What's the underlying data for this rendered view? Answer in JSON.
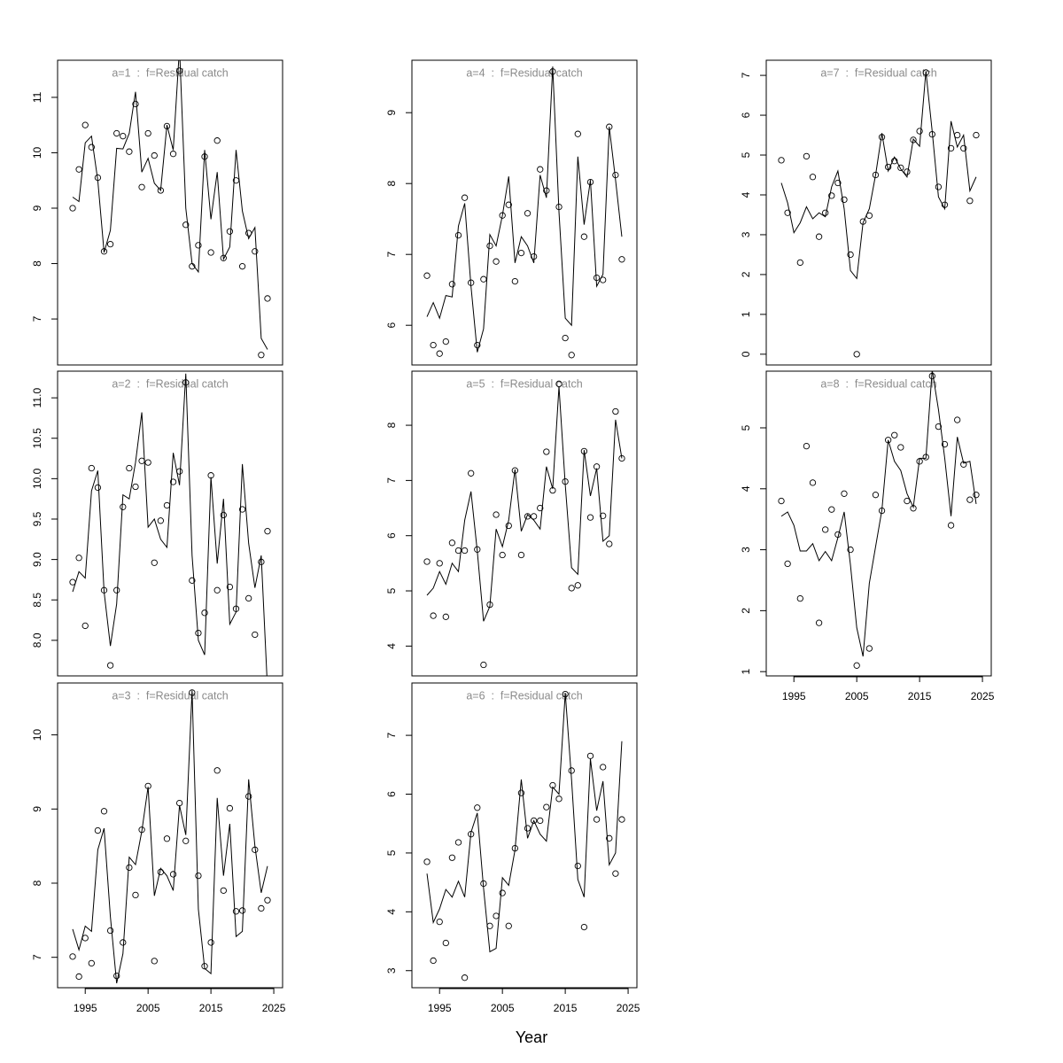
{
  "xlabel": "Year",
  "chart_data": [
    {
      "type": "line",
      "title": "a=1  :  f=Residual catch",
      "x": [
        1993,
        1994,
        1995,
        1996,
        1997,
        1998,
        1999,
        2000,
        2001,
        2002,
        2003,
        2004,
        2005,
        2006,
        2007,
        2008,
        2009,
        2010,
        2011,
        2012,
        2013,
        2014,
        2015,
        2016,
        2017,
        2018,
        2019,
        2020,
        2021,
        2022,
        2023,
        2024
      ],
      "xlim": [
        1990.6,
        2026.4
      ],
      "ylim": [
        6.17,
        11.67
      ],
      "yticks": [
        7,
        8,
        9,
        10,
        11
      ],
      "series": [
        {
          "style": "points",
          "color": "#000000",
          "values": [
            9.0,
            9.7,
            10.5,
            10.1,
            9.55,
            8.22,
            8.35,
            10.35,
            10.3,
            10.02,
            10.88,
            9.38,
            10.35,
            9.95,
            9.32,
            10.48,
            9.98,
            11.48,
            8.7,
            7.95,
            8.33,
            9.93,
            8.2,
            10.22,
            8.1,
            8.58,
            9.5,
            7.95,
            8.55,
            8.22,
            6.35,
            7.37
          ]
        },
        {
          "style": "line",
          "color": "#000000",
          "values": [
            9.2,
            9.12,
            10.18,
            10.3,
            9.5,
            8.2,
            8.6,
            10.08,
            10.07,
            10.35,
            11.1,
            9.65,
            9.9,
            9.45,
            9.32,
            10.5,
            10.05,
            11.9,
            9.0,
            8.0,
            7.85,
            10.05,
            8.8,
            9.65,
            8.08,
            8.3,
            10.05,
            8.95,
            8.45,
            8.65,
            6.65,
            6.45
          ]
        }
      ]
    },
    {
      "type": "line",
      "title": "a=2  :  f=Residual catch",
      "x": [
        1993,
        1994,
        1995,
        1996,
        1997,
        1998,
        1999,
        2000,
        2001,
        2002,
        2003,
        2004,
        2005,
        2006,
        2007,
        2008,
        2009,
        2010,
        2011,
        2012,
        2013,
        2014,
        2015,
        2016,
        2017,
        2018,
        2019,
        2020,
        2021,
        2022,
        2023,
        2024
      ],
      "xlim": [
        1990.6,
        2026.4
      ],
      "ylim": [
        7.56,
        11.33
      ],
      "yticks": [
        {
          "value": 8,
          "label": "8.0"
        },
        8.5,
        {
          "value": 9,
          "label": "9.0"
        },
        9.5,
        {
          "value": 10,
          "label": "10.0"
        },
        10.5,
        {
          "value": 11,
          "label": "11.0"
        }
      ],
      "series": [
        {
          "style": "points",
          "color": "#000000",
          "values": [
            8.72,
            9.02,
            8.18,
            10.13,
            9.89,
            8.62,
            7.69,
            8.62,
            9.65,
            10.13,
            9.9,
            10.22,
            10.2,
            8.96,
            9.48,
            9.67,
            9.96,
            10.09,
            11.19,
            8.74,
            8.09,
            8.34,
            10.04,
            8.62,
            9.55,
            8.66,
            8.39,
            9.62,
            8.52,
            8.07,
            8.97,
            9.35
          ]
        },
        {
          "style": "line",
          "color": "#000000",
          "values": [
            8.6,
            8.85,
            8.77,
            9.85,
            10.1,
            8.6,
            7.93,
            8.45,
            9.8,
            9.75,
            10.2,
            10.82,
            9.4,
            9.5,
            9.25,
            9.15,
            10.32,
            9.92,
            11.3,
            9.05,
            8.0,
            7.82,
            10.02,
            8.95,
            9.75,
            8.2,
            8.35,
            10.18,
            9.2,
            8.65,
            9.05,
            7.4
          ]
        }
      ]
    },
    {
      "type": "line",
      "title": "a=3  :  f=Residual catch",
      "x": [
        1993,
        1994,
        1995,
        1996,
        1997,
        1998,
        1999,
        2000,
        2001,
        2002,
        2003,
        2004,
        2005,
        2006,
        2007,
        2008,
        2009,
        2010,
        2011,
        2012,
        2013,
        2014,
        2015,
        2016,
        2017,
        2018,
        2019,
        2020,
        2021,
        2022,
        2023,
        2024
      ],
      "xlim": [
        1990.6,
        2026.4
      ],
      "xticks": [
        1995,
        2005,
        2015,
        2025
      ],
      "ylim": [
        6.59,
        10.7
      ],
      "yticks": [
        7,
        8,
        9,
        10
      ],
      "series": [
        {
          "style": "points",
          "color": "#000000",
          "values": [
            7.01,
            6.74,
            7.26,
            6.92,
            8.71,
            8.97,
            7.36,
            6.75,
            7.2,
            8.21,
            7.84,
            8.72,
            9.31,
            6.95,
            8.15,
            8.6,
            8.12,
            9.08,
            8.57,
            10.57,
            8.1,
            6.88,
            7.2,
            9.52,
            7.9,
            9.01,
            7.62,
            7.63,
            9.17,
            8.45,
            7.66,
            7.77
          ]
        },
        {
          "style": "line",
          "color": "#000000",
          "values": [
            7.38,
            7.1,
            7.42,
            7.35,
            8.45,
            8.74,
            7.55,
            6.65,
            7.05,
            8.35,
            8.25,
            8.7,
            9.3,
            7.83,
            8.2,
            8.1,
            7.9,
            9.05,
            8.65,
            10.6,
            7.65,
            6.85,
            6.78,
            9.15,
            8.1,
            8.8,
            7.28,
            7.35,
            9.4,
            8.5,
            7.87,
            8.23
          ]
        }
      ]
    },
    {
      "type": "line",
      "title": "a=4  :  f=Residual catch",
      "x": [
        1993,
        1994,
        1995,
        1996,
        1997,
        1998,
        1999,
        2000,
        2001,
        2002,
        2003,
        2004,
        2005,
        2006,
        2007,
        2008,
        2009,
        2010,
        2011,
        2012,
        2013,
        2014,
        2015,
        2016,
        2017,
        2018,
        2019,
        2020,
        2021,
        2022,
        2023,
        2024
      ],
      "xlim": [
        1990.6,
        2026.4
      ],
      "ylim": [
        5.44,
        9.74
      ],
      "yticks": [
        6,
        7,
        8,
        9
      ],
      "series": [
        {
          "style": "points",
          "color": "#000000",
          "values": [
            6.7,
            5.72,
            5.6,
            5.77,
            6.58,
            7.27,
            7.8,
            6.6,
            5.72,
            6.65,
            7.12,
            6.9,
            7.55,
            7.7,
            6.62,
            7.02,
            7.58,
            6.97,
            8.2,
            7.9,
            9.58,
            7.67,
            5.82,
            5.58,
            8.7,
            7.25,
            8.02,
            6.67,
            6.64,
            8.8,
            8.12,
            6.93
          ]
        },
        {
          "style": "line",
          "color": "#000000",
          "values": [
            6.12,
            6.32,
            6.1,
            6.42,
            6.4,
            7.4,
            7.72,
            6.55,
            5.62,
            5.95,
            7.28,
            7.12,
            7.55,
            8.1,
            6.88,
            7.25,
            7.12,
            6.88,
            8.12,
            7.8,
            9.65,
            7.6,
            6.1,
            6.0,
            8.38,
            7.42,
            8.05,
            6.55,
            6.72,
            8.8,
            8.05,
            7.25
          ]
        }
      ]
    },
    {
      "type": "line",
      "title": "a=5  :  f=Residual catch",
      "x": [
        1993,
        1994,
        1995,
        1996,
        1997,
        1998,
        1999,
        2000,
        2001,
        2002,
        2003,
        2004,
        2005,
        2006,
        2007,
        2008,
        2009,
        2010,
        2011,
        2012,
        2013,
        2014,
        2015,
        2016,
        2017,
        2018,
        2019,
        2020,
        2021,
        2022,
        2023,
        2024
      ],
      "xlim": [
        1990.6,
        2026.4
      ],
      "ylim": [
        3.46,
        8.98
      ],
      "yticks": [
        4,
        5,
        6,
        7,
        8
      ],
      "series": [
        {
          "style": "points",
          "color": "#000000",
          "values": [
            5.53,
            4.55,
            5.5,
            4.53,
            5.87,
            5.73,
            5.73,
            7.13,
            5.75,
            3.66,
            4.75,
            6.38,
            5.65,
            6.18,
            7.18,
            5.65,
            6.35,
            6.35,
            6.5,
            7.52,
            6.82,
            8.75,
            6.98,
            5.05,
            5.1,
            7.53,
            6.33,
            7.25,
            6.36,
            5.85,
            8.25,
            7.4
          ]
        },
        {
          "style": "line",
          "color": "#000000",
          "values": [
            4.92,
            5.05,
            5.35,
            5.12,
            5.5,
            5.35,
            6.28,
            6.8,
            5.72,
            4.45,
            4.72,
            6.12,
            5.8,
            6.28,
            7.2,
            6.08,
            6.38,
            6.28,
            6.12,
            7.25,
            6.85,
            8.7,
            6.92,
            5.42,
            5.3,
            7.55,
            6.72,
            7.22,
            5.9,
            6.0,
            8.1,
            7.4
          ]
        }
      ]
    },
    {
      "type": "line",
      "title": "a=6  :  f=Residual catch",
      "x": [
        1993,
        1994,
        1995,
        1996,
        1997,
        1998,
        1999,
        2000,
        2001,
        2002,
        2003,
        2004,
        2005,
        2006,
        2007,
        2008,
        2009,
        2010,
        2011,
        2012,
        2013,
        2014,
        2015,
        2016,
        2017,
        2018,
        2019,
        2020,
        2021,
        2022,
        2023,
        2024
      ],
      "xlim": [
        1990.6,
        2026.4
      ],
      "xticks": [
        1995,
        2005,
        2015,
        2025
      ],
      "ylim": [
        2.71,
        7.89
      ],
      "yticks": [
        3,
        4,
        5,
        6,
        7
      ],
      "series": [
        {
          "style": "points",
          "color": "#000000",
          "values": [
            4.85,
            3.17,
            3.83,
            3.47,
            4.92,
            5.18,
            2.88,
            5.32,
            5.77,
            4.48,
            3.76,
            3.93,
            4.32,
            3.76,
            5.08,
            6.02,
            5.42,
            5.55,
            5.55,
            5.78,
            6.15,
            5.92,
            7.7,
            6.4,
            4.78,
            3.74,
            6.65,
            5.57,
            6.46,
            5.25,
            4.65,
            5.57
          ]
        },
        {
          "style": "line",
          "color": "#000000",
          "values": [
            4.65,
            3.82,
            4.05,
            4.38,
            4.25,
            4.52,
            4.25,
            5.35,
            5.68,
            4.4,
            3.32,
            3.38,
            4.58,
            4.45,
            5.05,
            6.25,
            5.25,
            5.55,
            5.32,
            5.2,
            6.12,
            6.0,
            7.72,
            6.25,
            4.55,
            4.25,
            6.6,
            5.72,
            6.22,
            4.8,
            5.0,
            6.9
          ]
        }
      ]
    },
    {
      "type": "line",
      "title": "a=7  :  f=Residual catch",
      "x": [
        1993,
        1994,
        1995,
        1996,
        1997,
        1998,
        1999,
        2000,
        2001,
        2002,
        2003,
        2004,
        2005,
        2006,
        2007,
        2008,
        2009,
        2010,
        2011,
        2012,
        2013,
        2014,
        2015,
        2016,
        2017,
        2018,
        2019,
        2020,
        2021,
        2022,
        2023,
        2024
      ],
      "xlim": [
        1990.6,
        2026.4
      ],
      "ylim": [
        -0.27,
        7.38
      ],
      "yticks": [
        0,
        1,
        2,
        3,
        4,
        5,
        6,
        7
      ],
      "series": [
        {
          "style": "points",
          "color": "#000000",
          "values": [
            4.87,
            3.55,
            null,
            2.3,
            4.97,
            4.45,
            2.95,
            3.55,
            3.98,
            4.3,
            3.88,
            2.5,
            0.0,
            3.33,
            3.48,
            4.5,
            5.45,
            4.7,
            4.85,
            4.68,
            4.58,
            5.38,
            5.6,
            7.07,
            5.52,
            4.2,
            3.75,
            5.17,
            5.5,
            5.17,
            3.85,
            5.5
          ]
        },
        {
          "style": "line",
          "color": "#000000",
          "values": [
            4.3,
            3.8,
            3.05,
            3.3,
            3.7,
            3.4,
            3.55,
            3.45,
            4.2,
            4.6,
            3.65,
            2.1,
            1.9,
            3.3,
            3.65,
            4.5,
            5.55,
            4.6,
            4.95,
            4.65,
            4.45,
            5.4,
            5.22,
            7.1,
            5.6,
            3.95,
            3.65,
            5.85,
            5.2,
            5.5,
            4.1,
            4.45
          ]
        }
      ]
    },
    {
      "type": "line",
      "title": "a=8  :  f=Residual catch",
      "x": [
        1993,
        1994,
        1995,
        1996,
        1997,
        1998,
        1999,
        2000,
        2001,
        2002,
        2003,
        2004,
        2005,
        2006,
        2007,
        2008,
        2009,
        2010,
        2011,
        2012,
        2013,
        2014,
        2015,
        2016,
        2017,
        2018,
        2019,
        2020,
        2021,
        2022,
        2023,
        2024
      ],
      "xlim": [
        1990.6,
        2026.4
      ],
      "xticks": [
        1995,
        2005,
        2015,
        2025
      ],
      "ylim": [
        0.93,
        5.93
      ],
      "yticks": [
        1,
        2,
        3,
        4,
        5
      ],
      "series": [
        {
          "style": "points",
          "color": "#000000",
          "values": [
            3.8,
            2.77,
            null,
            2.2,
            4.7,
            4.1,
            1.8,
            3.33,
            3.66,
            3.25,
            3.92,
            3.0,
            1.1,
            null,
            1.38,
            3.9,
            3.64,
            4.8,
            4.88,
            4.68,
            3.8,
            3.68,
            4.45,
            4.52,
            5.85,
            5.02,
            4.73,
            3.4,
            5.13,
            4.4,
            3.82,
            3.9
          ]
        },
        {
          "style": "line",
          "color": "#000000",
          "values": [
            3.55,
            3.62,
            3.4,
            2.98,
            2.98,
            3.1,
            2.82,
            2.97,
            2.82,
            3.2,
            3.62,
            2.75,
            1.72,
            1.25,
            2.45,
            3.05,
            3.65,
            4.8,
            4.45,
            4.3,
            3.92,
            3.7,
            4.5,
            4.5,
            5.95,
            5.3,
            4.5,
            3.55,
            4.85,
            4.42,
            4.45,
            3.75
          ]
        }
      ]
    }
  ]
}
